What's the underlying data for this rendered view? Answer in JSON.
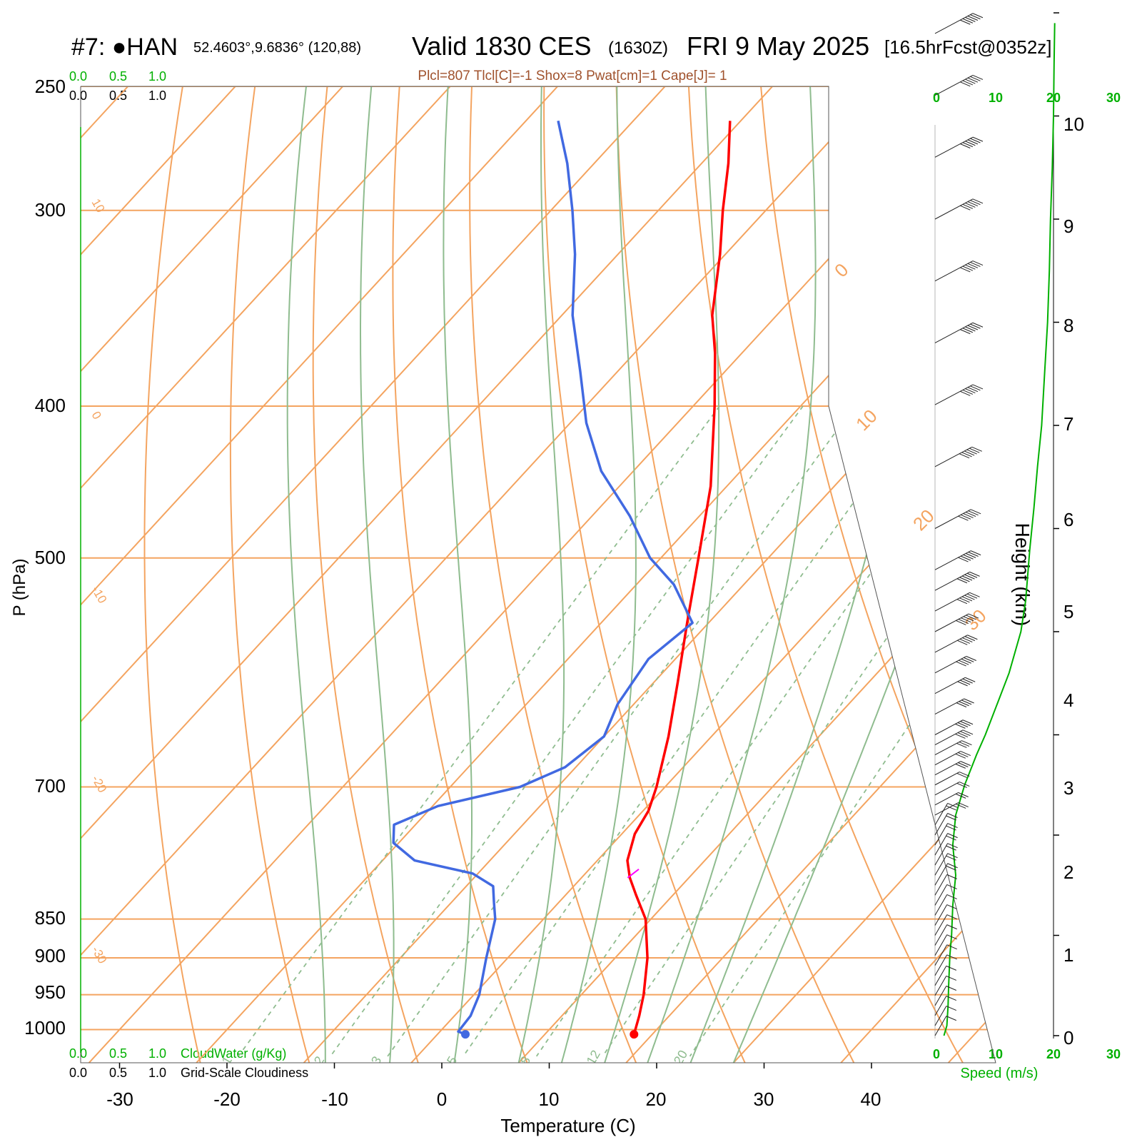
{
  "header": {
    "station": "#7: ●HAN",
    "coords": "52.4603°,9.6836° (120,88)",
    "valid": "Valid 1830 CES",
    "utc": "(1630Z)",
    "date": "FRI 9 May 2025",
    "forecast": "[16.5hrFcst@0352z]",
    "indices": "Plcl=807 Tlcl[C]=-1 Shox=8 Pwat[cm]=1 Cape[J]= 1"
  },
  "colors": {
    "temperature": "#ff0000",
    "dewpoint": "#4169e1",
    "isobar_isotherm": "#f4a460",
    "adiabat": "#8fbc8f",
    "cloud_scale": "#00b000",
    "indices_text": "#a0522d",
    "parcel": "#ff00ff"
  },
  "axes": {
    "pressure_label": "P (hPa)",
    "temperature_label": "Temperature (C)",
    "height_label": "Height (km)",
    "speed_label": "Speed (m/s)",
    "pressure_ticks": [
      "250",
      "300",
      "400",
      "500",
      "700",
      "850",
      "900",
      "950",
      "1000"
    ],
    "temperature_ticks": [
      "-30",
      "-20",
      "-10",
      "0",
      "10",
      "20",
      "30",
      "40"
    ],
    "height_ticks": [
      "0",
      "1",
      "2",
      "3",
      "4",
      "5",
      "6",
      "7",
      "8",
      "9",
      "10"
    ],
    "speed_ticks": [
      "0",
      "10",
      "20",
      "30"
    ],
    "cloudwater_label": "CloudWater (g/Kg)",
    "cloudiness_label": "Grid-Scale Cloudiness",
    "cloud_scale_ticks": [
      "0.0",
      "0.5",
      "1.0"
    ],
    "mixing_ratio_labels": [
      "1",
      "2",
      "3",
      "5",
      "8",
      "12",
      "20"
    ],
    "isotherm_labels": [
      "10",
      "0",
      "-10",
      "-20",
      "-30"
    ],
    "upper_isotherm_labels": [
      "0",
      "10",
      "20",
      "30"
    ]
  },
  "chart_data": {
    "type": "line",
    "title": "Valid 1830 CES (1630Z) FRI 9 May 2025",
    "xlabel": "Temperature (C)",
    "ylabel": "P (hPa)",
    "xlim": [
      -33,
      36
    ],
    "ylim": [
      1050,
      250
    ],
    "grid": true,
    "legend": "none",
    "series": [
      {
        "key": "temperature",
        "pressure": [
          1007,
          980,
          950,
          900,
          850,
          820,
          800,
          780,
          750,
          725,
          700,
          650,
          600,
          550,
          500,
          450,
          400,
          370,
          350,
          320,
          300,
          280,
          263
        ],
        "values": [
          18.3,
          17.2,
          15.8,
          13.0,
          9.5,
          6.5,
          4.5,
          2.8,
          1.2,
          0.5,
          -0.8,
          -4.0,
          -7.8,
          -12.0,
          -16.5,
          -21.5,
          -28.0,
          -32.5,
          -36.0,
          -40.5,
          -44.0,
          -47.5,
          -51.0
        ]
      },
      {
        "key": "dewpoint",
        "pressure": [
          1007,
          1003,
          980,
          950,
          900,
          850,
          830,
          810,
          795,
          780,
          760,
          740,
          720,
          700,
          680,
          650,
          620,
          580,
          550,
          520,
          500,
          470,
          440,
          410,
          380,
          350,
          320,
          300,
          280,
          263
        ],
        "values": [
          2.6,
          1.7,
          1.5,
          0.5,
          -2.0,
          -4.5,
          -6.0,
          -7.5,
          -10.5,
          -17.0,
          -20.5,
          -22.0,
          -19.5,
          -13.5,
          -11.0,
          -10.0,
          -11.5,
          -12.5,
          -11.5,
          -16.5,
          -21.0,
          -26.5,
          -33.0,
          -38.5,
          -43.5,
          -49.0,
          -54.0,
          -58.0,
          -62.5,
          -67.0
        ]
      }
    ],
    "parcel_marker": {
      "pressure": [
        800,
        790
      ],
      "values": [
        4.3,
        4.6
      ]
    },
    "wind_speed_ms": {
      "heights_km": [
        0.0,
        0.1,
        0.3,
        0.5,
        0.8,
        1.0,
        1.3,
        1.6,
        1.9,
        2.2,
        2.5,
        2.8,
        3.0,
        3.3,
        3.6,
        4.0,
        4.3,
        4.8,
        5.2,
        5.6,
        6.0,
        6.5,
        7.0,
        7.5,
        8.0,
        8.5,
        9.0,
        9.5,
        9.9
      ],
      "values": [
        1.5,
        2.0,
        2.2,
        2.3,
        2.5,
        2.8,
        3.0,
        3.5,
        3.0,
        3.5,
        5.0,
        7.0,
        8.5,
        10.5,
        12.5,
        14.5,
        15.3,
        16.0,
        16.7,
        17.3,
        18.0,
        18.5,
        19.0,
        19.3,
        19.5,
        19.8,
        20.0,
        20.1,
        20.2
      ]
    },
    "wind_barbs": {
      "heights_km": [
        0.0,
        0.1,
        0.2,
        0.3,
        0.4,
        0.5,
        0.6,
        0.7,
        0.8,
        0.9,
        1.0,
        1.1,
        1.2,
        1.3,
        1.4,
        1.5,
        1.6,
        1.7,
        1.8,
        1.9,
        2.0,
        2.1,
        2.2,
        2.3,
        2.4,
        2.5,
        2.6,
        2.7,
        2.8,
        2.9,
        3.0,
        3.2,
        3.4,
        3.6,
        3.8,
        4.0,
        4.2,
        4.4,
        4.6,
        5.0,
        5.6,
        6.2,
        6.8,
        7.4,
        8.0,
        8.6,
        9.2,
        9.8
      ],
      "speed_ms": [
        2,
        2,
        2,
        2,
        2,
        2,
        3,
        3,
        3,
        3,
        3,
        3,
        3,
        3,
        3,
        4,
        4,
        4,
        4,
        4,
        4,
        4,
        5,
        5,
        6,
        6,
        7,
        7,
        8,
        9,
        9,
        10,
        11,
        12,
        13,
        14,
        15,
        15,
        16,
        16,
        17,
        18,
        18,
        19,
        19,
        20,
        20,
        20
      ]
    }
  }
}
